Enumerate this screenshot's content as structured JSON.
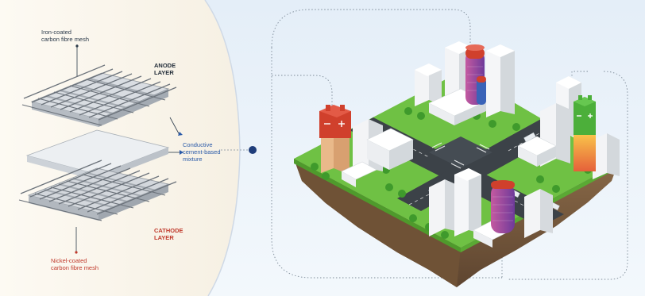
{
  "labels": {
    "iron_mesh_line1": "Iron-coated",
    "iron_mesh_line2": "carbon fibre mesh",
    "anode_line1": "ANODE",
    "anode_line2": "LAYER",
    "mixture_line1": "Conductive",
    "mixture_line2": "cement-based",
    "mixture_line3": "mixture",
    "cathode_line1": "CATHODE",
    "cathode_line2": "LAYER",
    "nickel_mesh_line1": "Nickel-coated",
    "nickel_mesh_line2": "carbon fibre mesh"
  },
  "colors": {
    "panel_background": "#fbf7ef",
    "sky_background": "#e8f1f8",
    "grass": "#6fc144",
    "road": "#3c4248",
    "soil": "#7a5a3c",
    "battery_red": "#d0402c",
    "battery_green": "#4caf3a",
    "battery_purple": "#a6438c",
    "connector_dot": "#1f3d7a"
  },
  "icons": [
    "battery-red-icon",
    "battery-green-icon",
    "battery-purple-icon"
  ]
}
